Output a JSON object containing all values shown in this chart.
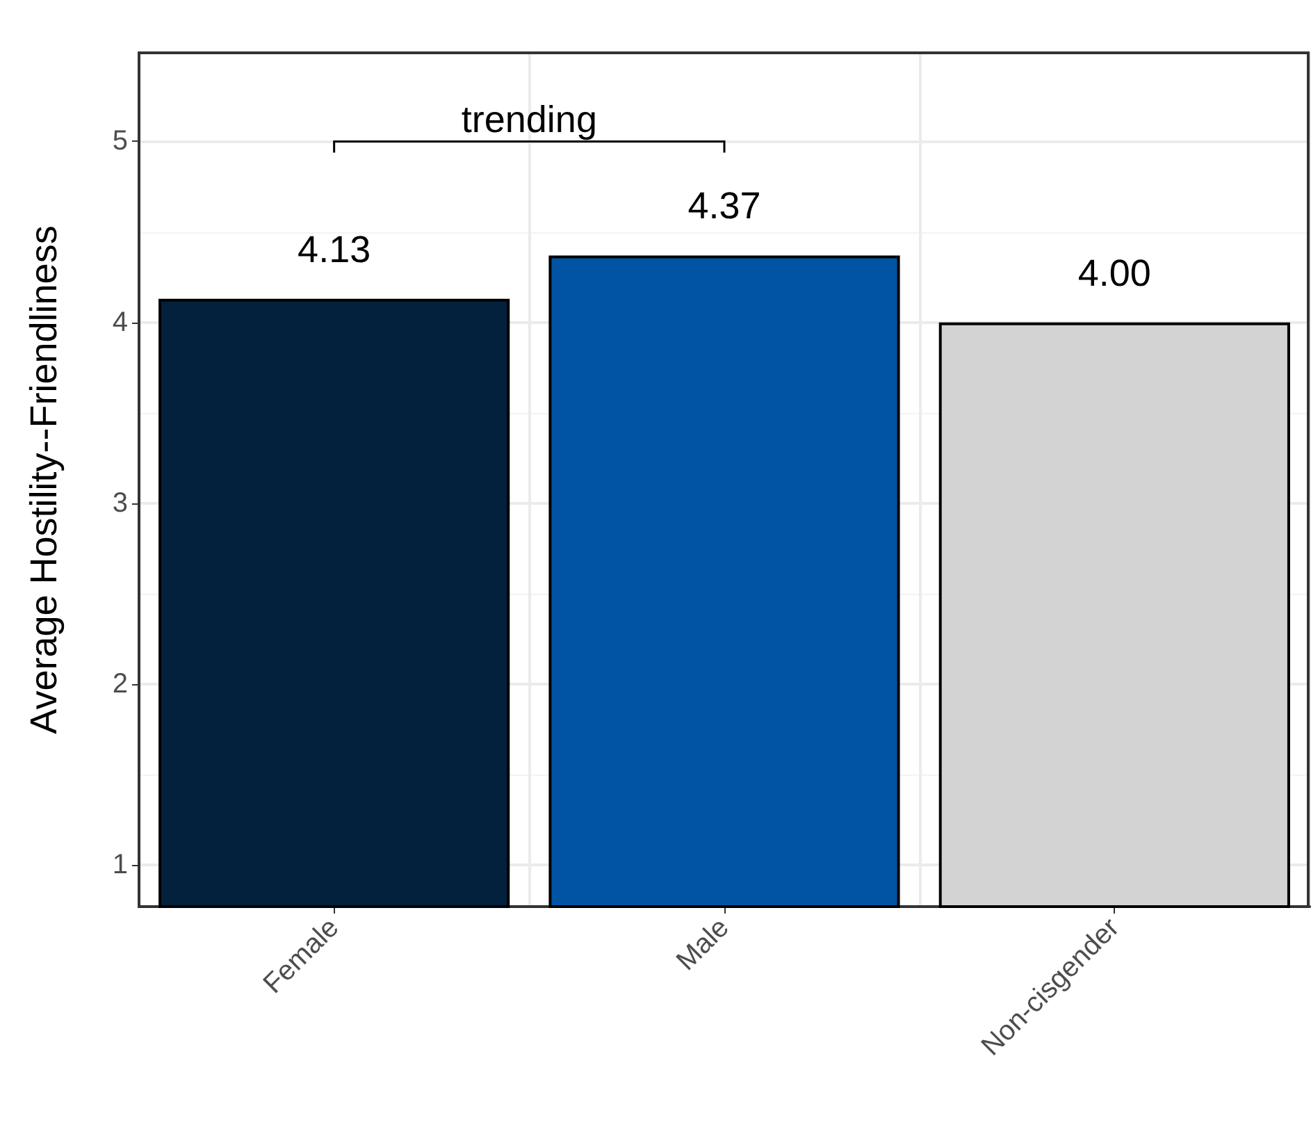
{
  "chart_data": {
    "type": "bar",
    "ylabel": "Average Hostility--Friendliness",
    "categories": [
      "Female",
      "Male",
      "Non-cisgender"
    ],
    "values": [
      4.13,
      4.37,
      4.0
    ],
    "colors": [
      "#03213d",
      "#0154a4",
      "#d3d3d3"
    ],
    "value_labels": [
      "4.13",
      "4.37",
      "4.00"
    ],
    "ylim": [
      0.77,
      5.49
    ],
    "yticks": [
      1,
      2,
      3,
      4,
      5
    ],
    "grid": true,
    "annotations": [
      "trending"
    ]
  }
}
